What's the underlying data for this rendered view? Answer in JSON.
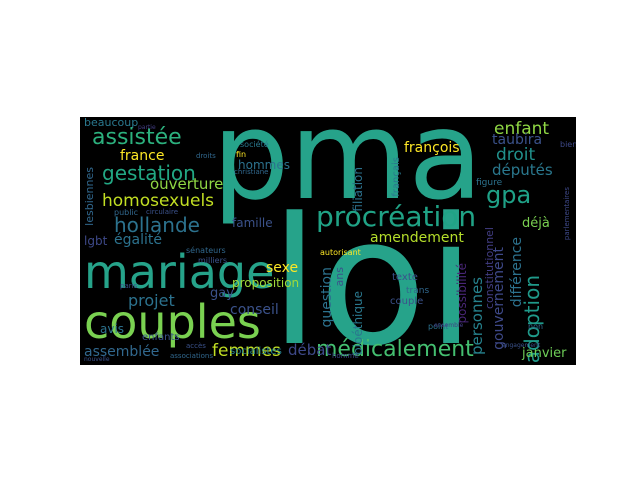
{
  "words": [
    {
      "text": "pma",
      "color": "#26a38a"
    },
    {
      "text": "loi",
      "color": "#26a38a"
    },
    {
      "text": "mariage",
      "color": "#26a38a"
    },
    {
      "text": "couples",
      "color": "#7ad151"
    },
    {
      "text": "procréation",
      "color": "#20a386"
    },
    {
      "text": "médicalement",
      "color": "#44bf70"
    },
    {
      "text": "assistée",
      "color": "#2cb17e"
    },
    {
      "text": "gestation",
      "color": "#22a884"
    },
    {
      "text": "homosexuels",
      "color": "#c2df23"
    },
    {
      "text": "hollande",
      "color": "#2c728e"
    },
    {
      "text": "femmes",
      "color": "#c2df23"
    },
    {
      "text": "adoption",
      "color": "#1f9a8a"
    },
    {
      "text": "gpa",
      "color": "#1fa187"
    },
    {
      "text": "enfant",
      "color": "#8fd744"
    },
    {
      "text": "droit",
      "color": "#21918c"
    },
    {
      "text": "députés",
      "color": "#2a788e"
    },
    {
      "text": "taubira",
      "color": "#3b528b"
    },
    {
      "text": "france",
      "color": "#fde725"
    },
    {
      "text": "ouverture",
      "color": "#8fd744"
    },
    {
      "text": "égalité",
      "color": "#2c728e"
    },
    {
      "text": "projet",
      "color": "#2c728e"
    },
    {
      "text": "assemblée",
      "color": "#31688e"
    },
    {
      "text": "débat",
      "color": "#3e4989"
    },
    {
      "text": "françois",
      "color": "#fde725"
    },
    {
      "text": "amendement",
      "color": "#b5de2b"
    },
    {
      "text": "sexe",
      "color": "#fde725"
    },
    {
      "text": "gay",
      "color": "#3b528b"
    },
    {
      "text": "conseil",
      "color": "#3b528b"
    },
    {
      "text": "personnes",
      "color": "#26828e"
    },
    {
      "text": "gouvernement",
      "color": "#3e4989"
    },
    {
      "text": "différence",
      "color": "#2c728e"
    },
    {
      "text": "déjà",
      "color": "#7ad151"
    },
    {
      "text": "janvier",
      "color": "#6ece58"
    },
    {
      "text": "avis",
      "color": "#2c728e"
    },
    {
      "text": "lgbt",
      "color": "#3e4989"
    },
    {
      "text": "lesbiennes",
      "color": "#31688e"
    },
    {
      "text": "beaucoup",
      "color": "#2a788e"
    },
    {
      "text": "famille",
      "color": "#3b528b"
    },
    {
      "text": "hommes",
      "color": "#2c728e"
    },
    {
      "text": "question",
      "color": "#2c728e"
    },
    {
      "text": "filiation",
      "color": "#2c728e"
    },
    {
      "text": "bioéthique",
      "color": "#2a788e"
    },
    {
      "text": "proposition",
      "color": "#a0da39"
    },
    {
      "text": "possibilité",
      "color": "#482677"
    },
    {
      "text": "constitutionnel",
      "color": "#433e85"
    },
    {
      "text": "texte",
      "color": "#3b528b"
    },
    {
      "text": "couple",
      "color": "#3b528b"
    },
    {
      "text": "ans",
      "color": "#3b528b"
    },
    {
      "text": "enfants",
      "color": "#3b528b"
    },
    {
      "text": "socialistes",
      "color": "#26828e"
    },
    {
      "text": "français",
      "color": "#2a788e"
    },
    {
      "text": "figure",
      "color": "#2c728e"
    },
    {
      "text": "trans",
      "color": "#31688e"
    },
    {
      "text": "autorisant",
      "color": "#fde725"
    },
    {
      "text": "sénateurs",
      "color": "#31688e"
    },
    {
      "text": "public",
      "color": "#31688e"
    },
    {
      "text": "point",
      "color": "#2c728e"
    },
    {
      "text": "non",
      "color": "#31688e"
    },
    {
      "text": "société",
      "color": "#2a788e"
    },
    {
      "text": "fin",
      "color": "#fde725"
    },
    {
      "text": "milliers",
      "color": "#3b528b"
    },
    {
      "text": "associations",
      "color": "#31688e"
    },
    {
      "text": "accès",
      "color": "#3b528b"
    },
    {
      "text": "homme",
      "color": "#3e4989"
    },
    {
      "text": "paris",
      "color": "#3b528b"
    },
    {
      "text": "christiane",
      "color": "#31688e"
    },
    {
      "text": "bien",
      "color": "#3e4989"
    },
    {
      "text": "droits",
      "color": "#31688e"
    },
    {
      "text": "nouvelle",
      "color": "#3b528b"
    },
    {
      "text": "engagement",
      "color": "#3b528b"
    },
    {
      "text": "partie",
      "color": "#433e85"
    },
    {
      "text": "ensemble",
      "color": "#433e85"
    },
    {
      "text": "circulaire",
      "color": "#3b528b"
    },
    {
      "text": "parlementaires",
      "color": "#3e4989"
    }
  ]
}
